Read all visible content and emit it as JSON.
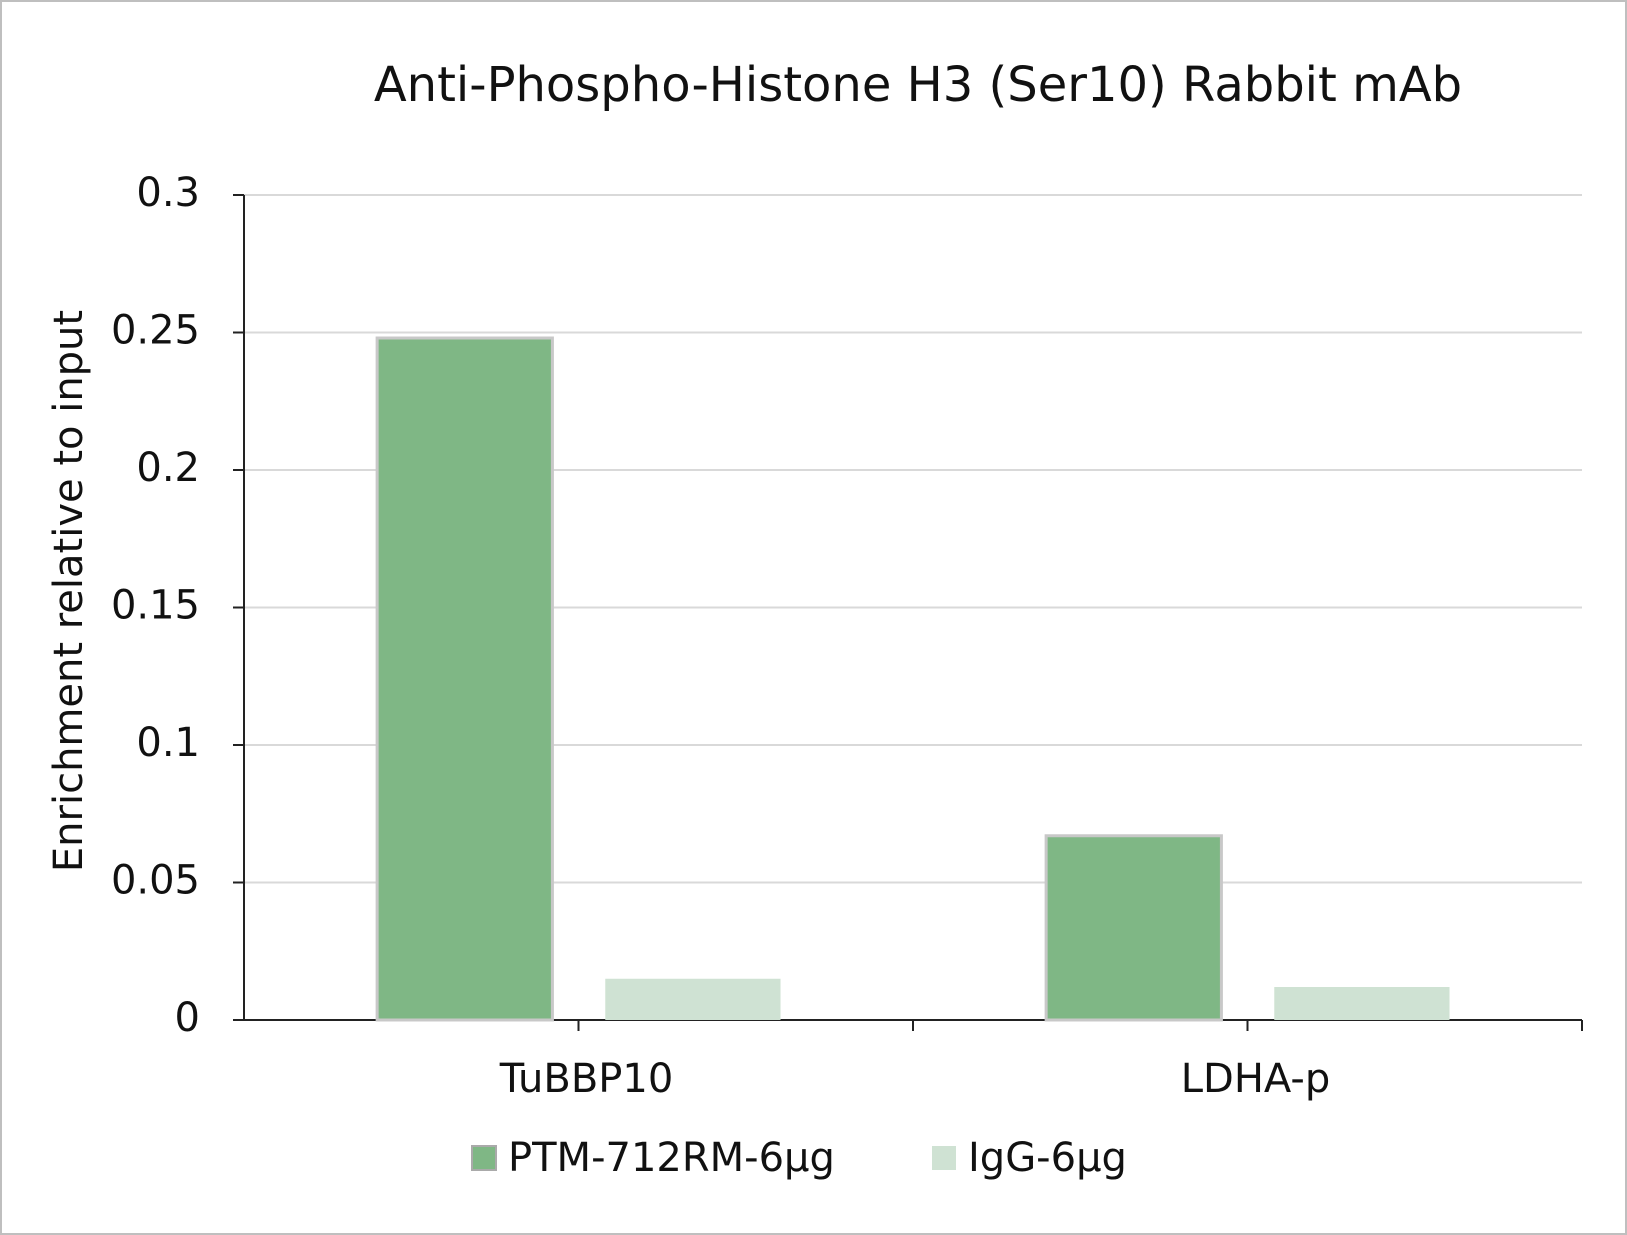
{
  "chart_data": {
    "type": "bar",
    "title": "Anti-Phospho-Histone H3 (Ser10) Rabbit mAb",
    "y_label": "Enrichment relative to input",
    "categories": [
      "TuBBP10",
      "LDHA-p"
    ],
    "series": [
      {
        "name": "PTM-712RM-6µg",
        "color": "#7fb785",
        "values": [
          0.248,
          0.067
        ]
      },
      {
        "name": "IgG-6µg",
        "color": "#cfe2d3",
        "values": [
          0.015,
          0.012
        ]
      }
    ],
    "ylim": [
      0,
      0.3
    ],
    "yticks": [
      0,
      0.05,
      0.1,
      0.15,
      0.2,
      0.25,
      0.3
    ],
    "grid": true
  }
}
